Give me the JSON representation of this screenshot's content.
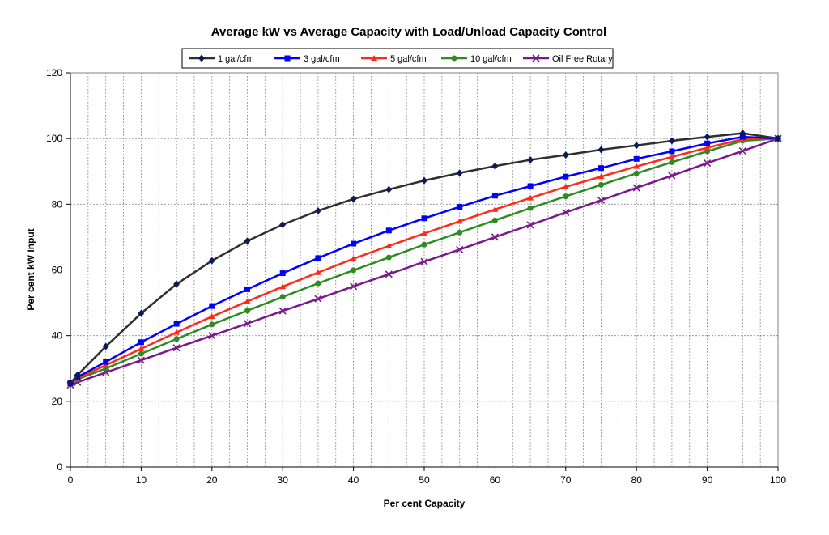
{
  "chart_data": {
    "type": "line",
    "title": "Average kW vs Average Capacity with Load/Unload Capacity Control",
    "xlabel": "Per cent Capacity",
    "ylabel": "Per cent kW Input",
    "xlim": [
      0,
      100
    ],
    "ylim": [
      0,
      120
    ],
    "xticks": [
      0,
      10,
      20,
      30,
      40,
      50,
      60,
      70,
      80,
      90,
      100
    ],
    "yticks": [
      0,
      20,
      40,
      60,
      80,
      100,
      120
    ],
    "x_minor_grid_step": 2.5,
    "grid": true,
    "legend_position": "top-center",
    "series": [
      {
        "name": "1 gal/cfm",
        "color": "#2f2f2f",
        "marker_color": "#0a1a5a",
        "marker": "diamond",
        "x": [
          0,
          1,
          5,
          10,
          15,
          20,
          25,
          30,
          35,
          40,
          45,
          50,
          55,
          60,
          65,
          70,
          75,
          80,
          85,
          90,
          95,
          100
        ],
        "y": [
          25.5,
          28,
          36.7,
          46.8,
          55.7,
          62.8,
          68.8,
          73.8,
          78,
          81.6,
          84.5,
          87.2,
          89.5,
          91.6,
          93.5,
          95,
          96.6,
          97.9,
          99.3,
          100.5,
          101.6,
          100
        ]
      },
      {
        "name": "3 gal/cfm",
        "color": "#0000ff",
        "marker_color": "#0000ff",
        "marker": "square",
        "x": [
          0,
          1,
          5,
          10,
          15,
          20,
          25,
          30,
          35,
          40,
          45,
          50,
          55,
          60,
          65,
          70,
          75,
          80,
          85,
          90,
          95,
          100
        ],
        "y": [
          25.5,
          27.4,
          32,
          38,
          43.6,
          49,
          54.1,
          59,
          63.6,
          68,
          72,
          75.7,
          79.2,
          82.6,
          85.5,
          88.4,
          91,
          93.8,
          96.1,
          98.5,
          100.5,
          100
        ]
      },
      {
        "name": "5 gal/cfm",
        "color": "#ff2a1a",
        "marker_color": "#ff2a1a",
        "marker": "triangle",
        "x": [
          0,
          1,
          5,
          10,
          15,
          20,
          25,
          30,
          35,
          40,
          45,
          50,
          55,
          60,
          65,
          70,
          75,
          80,
          85,
          90,
          95,
          100
        ],
        "y": [
          25.5,
          27,
          31,
          36,
          41,
          45.8,
          50.4,
          54.9,
          59.2,
          63.4,
          67.3,
          71.1,
          74.8,
          78.4,
          81.9,
          85.3,
          88.4,
          91.5,
          94.4,
          97.2,
          99.8,
          100
        ]
      },
      {
        "name": "10 gal/cfm",
        "color": "#2e8b22",
        "marker_color": "#2e8b22",
        "marker": "circle",
        "x": [
          0,
          1,
          5,
          10,
          15,
          20,
          25,
          30,
          35,
          40,
          45,
          50,
          55,
          60,
          65,
          70,
          75,
          80,
          85,
          90,
          95,
          100
        ],
        "y": [
          25.5,
          26.7,
          30,
          34.5,
          39,
          43.4,
          47.6,
          51.8,
          55.9,
          59.9,
          63.8,
          67.7,
          71.4,
          75.1,
          78.8,
          82.4,
          85.9,
          89.4,
          92.8,
          96.1,
          99.3,
          100
        ]
      },
      {
        "name": "Oil Free Rotary",
        "color": "#7a1a8a",
        "marker_color": "#7a1a8a",
        "marker": "x",
        "x": [
          0,
          1,
          5,
          10,
          15,
          20,
          25,
          30,
          35,
          40,
          45,
          50,
          55,
          60,
          65,
          70,
          75,
          80,
          85,
          90,
          95,
          100
        ],
        "y": [
          25,
          25.8,
          28.8,
          32.5,
          36.3,
          40,
          43.7,
          47.5,
          51.2,
          55,
          58.7,
          62.5,
          66.2,
          70,
          73.7,
          77.5,
          81.2,
          85,
          88.7,
          92.5,
          96.2,
          100
        ]
      }
    ]
  }
}
